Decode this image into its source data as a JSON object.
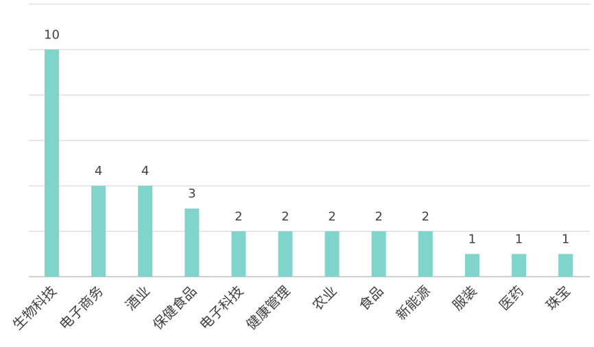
{
  "chart_data": {
    "type": "bar",
    "categories": [
      "生物科技",
      "电子商务",
      "酒业",
      "保健食品",
      "电子科技",
      "健康管理",
      "农业",
      "食品",
      "新能源",
      "服装",
      "医药",
      "珠宝"
    ],
    "values": [
      10,
      4,
      4,
      3,
      2,
      2,
      2,
      2,
      2,
      1,
      1,
      1
    ],
    "ylim": [
      0,
      12
    ],
    "grid": true,
    "data_labels": true,
    "bar_color": "#7fd4cc",
    "label_color": "#404040",
    "grid_color": "#d9d9d9"
  }
}
